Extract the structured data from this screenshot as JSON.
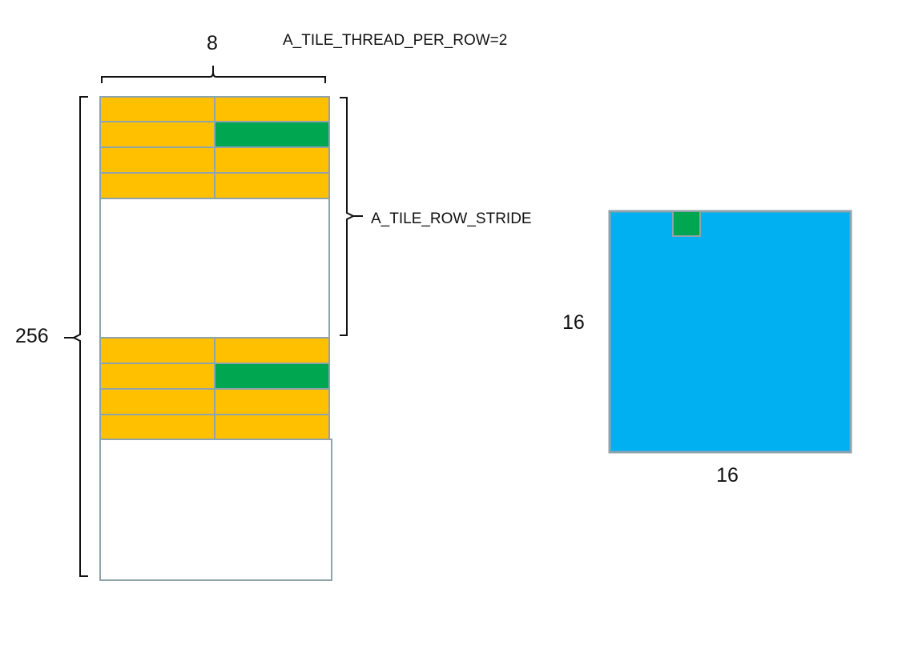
{
  "labels": {
    "width_count": "8",
    "threads_per_row": "A_TILE_THREAD_PER_ROW=2",
    "row_stride": "A_TILE_ROW_STRIDE",
    "height_count": "256",
    "block_side_left": "16",
    "block_side_bottom": "16"
  },
  "colors": {
    "tile_cell": "#FFC000",
    "highlight_cell": "#00A650",
    "block_fill": "#00B0F0",
    "outline": "#8FA3AC",
    "bracket": "#111111"
  },
  "tile": {
    "columns": 2,
    "rows_per_group": 4,
    "groups": 2,
    "highlight": {
      "row": 1,
      "column": 1
    }
  }
}
